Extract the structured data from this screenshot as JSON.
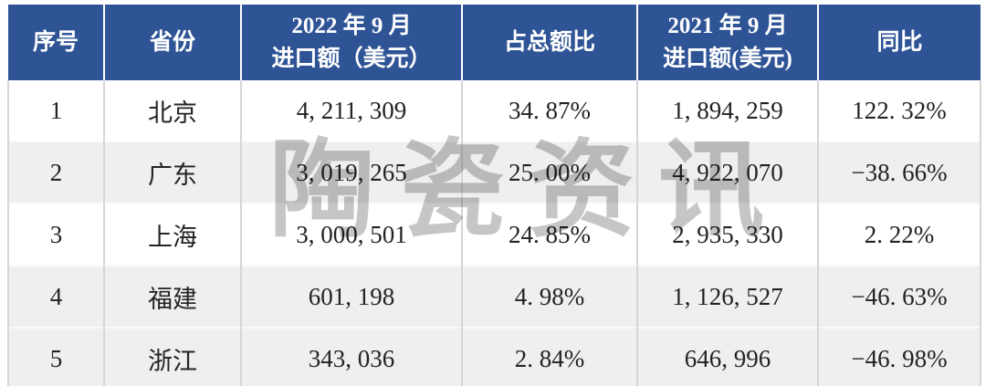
{
  "colors": {
    "header_bg": "#2f5496",
    "header_text": "#ffffff",
    "row_shaded_bg": "#efefef",
    "body_text": "#232323",
    "grid_line": "#d6d6d6",
    "bottom_border": "#3f3f3f",
    "watermark": "#c6c6c6"
  },
  "watermark": {
    "text": "陶瓷资讯"
  },
  "table": {
    "headers": [
      {
        "lines": [
          "序号"
        ]
      },
      {
        "lines": [
          "省份"
        ]
      },
      {
        "lines": [
          "2022 年 9 月",
          "进口额（美元）"
        ]
      },
      {
        "lines": [
          "占总额比"
        ]
      },
      {
        "lines": [
          "2021 年 9 月",
          "进口额(美元)"
        ]
      },
      {
        "lines": [
          "同比"
        ]
      }
    ],
    "rows": [
      {
        "seq": "1",
        "province": "北京",
        "import_2022": "4, 211, 309",
        "share": "34. 87%",
        "import_2021": "1, 894, 259",
        "yoy": "122. 32%"
      },
      {
        "seq": "2",
        "province": "广东",
        "import_2022": "3, 019, 265",
        "share": "25. 00%",
        "import_2021": "4, 922, 070",
        "yoy": "−38. 66%"
      },
      {
        "seq": "3",
        "province": "上海",
        "import_2022": "3, 000, 501",
        "share": "24. 85%",
        "import_2021": "2, 935, 330",
        "yoy": "2. 22%"
      },
      {
        "seq": "4",
        "province": "福建",
        "import_2022": "601, 198",
        "share": "4. 98%",
        "import_2021": "1, 126, 527",
        "yoy": "−46. 63%"
      },
      {
        "seq": "5",
        "province": "浙江",
        "import_2022": "343, 036",
        "share": "2. 84%",
        "import_2021": "646, 996",
        "yoy": "−46. 98%"
      }
    ]
  },
  "chart_data": {
    "type": "table",
    "columns": [
      "序号",
      "省份",
      "2022年9月进口额（美元）",
      "占总额比",
      "2021年9月进口额(美元)",
      "同比"
    ],
    "rows": [
      [
        1,
        "北京",
        4211309,
        "34.87%",
        1894259,
        "122.32%"
      ],
      [
        2,
        "广东",
        3019265,
        "25.00%",
        4922070,
        "-38.66%"
      ],
      [
        3,
        "上海",
        3000501,
        "24.85%",
        2935330,
        "2.22%"
      ],
      [
        4,
        "福建",
        601198,
        "4.98%",
        1126527,
        "-46.63%"
      ],
      [
        5,
        "浙江",
        343036,
        "2.84%",
        646996,
        "-46.98%"
      ]
    ]
  }
}
